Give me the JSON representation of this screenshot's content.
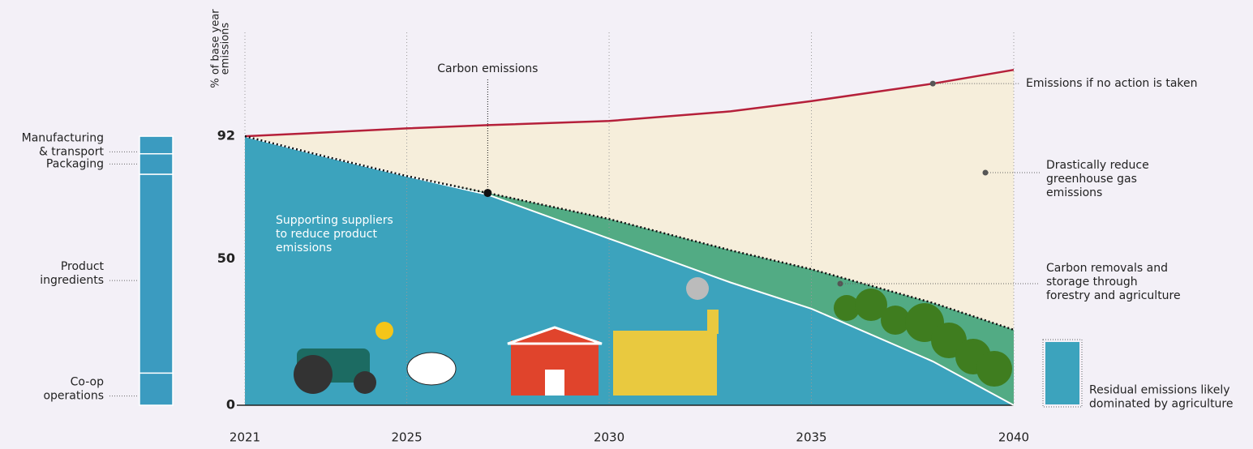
{
  "chart_data": [
    {
      "type": "area",
      "y_label": [
        "% of base year",
        "emissions"
      ],
      "x": [
        2021,
        2023,
        2025,
        2027,
        2030,
        2033,
        2035,
        2038,
        2040
      ],
      "xlim": [
        2021,
        2040
      ],
      "xticks": [
        2021,
        2025,
        2030,
        2035,
        2040
      ],
      "ylim": [
        0,
        130
      ],
      "yticks": [
        0,
        50,
        92
      ],
      "grid": true,
      "series": [
        {
          "name": [
            "Emissions if no action is taken"
          ],
          "color": "#b5203a",
          "values": [
            92,
            93.3,
            94.7,
            95.8,
            97.2,
            100.5,
            104,
            110,
            114.7
          ]
        },
        {
          "name": [
            "Carbon emissions"
          ],
          "color": "#111111",
          "values": [
            92,
            85,
            78.4,
            72.6,
            63.7,
            53,
            46.5,
            35,
            25.8
          ]
        },
        {
          "name": [
            "Supporting suppliers",
            "to reduce product",
            "emissions"
          ],
          "color": "#3ca3bd",
          "values": [
            92,
            85,
            78.4,
            72,
            57,
            42,
            33,
            15,
            0
          ]
        }
      ],
      "annotations": [
        {
          "text": [
            "Drastically reduce",
            "greenhouse gas",
            "emissions"
          ],
          "color": "#f6eedb"
        },
        {
          "text": [
            "Carbon removals and",
            "storage through",
            "forestry and agriculture"
          ],
          "color": "#52ab84"
        },
        {
          "text": [
            "Residual emissions likely",
            "dominated by agriculture"
          ],
          "color": "#3ca3bd"
        }
      ]
    },
    {
      "type": "bar",
      "stacked": true,
      "categories": [
        [
          "Manufacturing",
          "& transport"
        ],
        [
          "Packaging"
        ],
        [
          "Product",
          "ingredients"
        ],
        [
          "Co-op",
          "operations"
        ]
      ],
      "values": [
        6,
        7,
        68,
        11
      ],
      "color": "#3b9bc0",
      "ylim": [
        0,
        130
      ]
    }
  ]
}
